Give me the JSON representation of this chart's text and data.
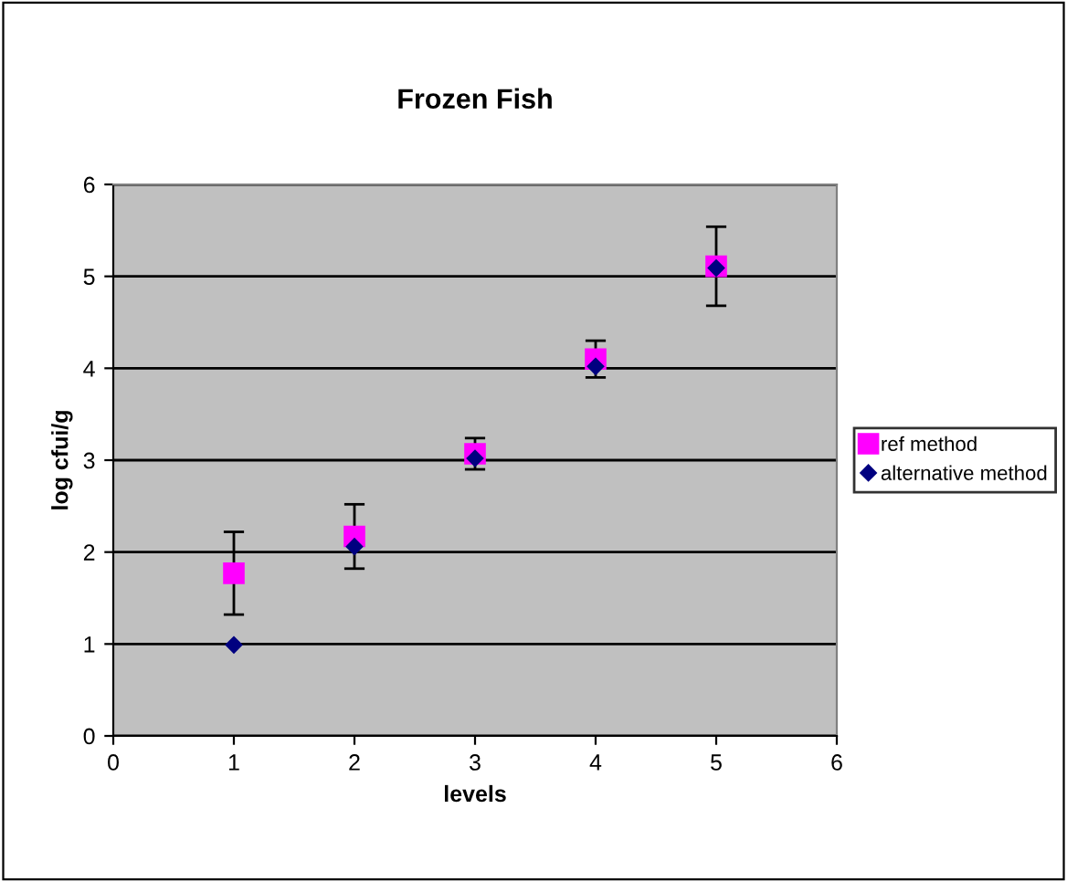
{
  "chart_data": {
    "type": "scatter",
    "title": "Frozen Fish",
    "xlabel": "levels",
    "ylabel": "log cfui/g",
    "x": [
      1,
      2,
      3,
      4,
      5
    ],
    "series": [
      {
        "name": "ref method",
        "color": "#ff00ff",
        "marker": "square",
        "values": [
          1.77,
          2.17,
          3.07,
          4.1,
          5.11
        ],
        "errors": [
          0.45,
          0.35,
          0.17,
          0.2,
          0.43
        ]
      },
      {
        "name": "alternative method",
        "color": "#000080",
        "marker": "diamond",
        "values": [
          0.99,
          2.06,
          3.02,
          4.02,
          5.09
        ]
      }
    ],
    "xlim": [
      0,
      6
    ],
    "xticks": [
      0,
      1,
      2,
      3,
      4,
      5,
      6
    ],
    "ylim": [
      0,
      6
    ],
    "yticks": [
      0,
      1,
      2,
      3,
      4,
      5,
      6
    ],
    "grid": "y",
    "legend": "right"
  }
}
